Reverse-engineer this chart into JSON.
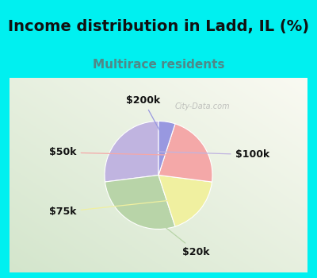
{
  "title": "Income distribution in Ladd, IL (%)",
  "subtitle": "Multirace residents",
  "labels": [
    "$100k",
    "$20k",
    "$75k",
    "$50k",
    "$200k"
  ],
  "values": [
    27,
    28,
    18,
    22,
    5
  ],
  "colors": [
    "#c0b4e0",
    "#b8d4a8",
    "#f0f0a0",
    "#f4a8a8",
    "#9898e0"
  ],
  "startangle": 90,
  "bg_cyan": "#00f0f0",
  "bg_chart_tl": "#e8f8f0",
  "bg_chart_br": "#d0ecd8",
  "title_fontsize": 14,
  "subtitle_fontsize": 11,
  "subtitle_color": "#508888",
  "label_fontsize": 9,
  "watermark": "City-Data.com"
}
